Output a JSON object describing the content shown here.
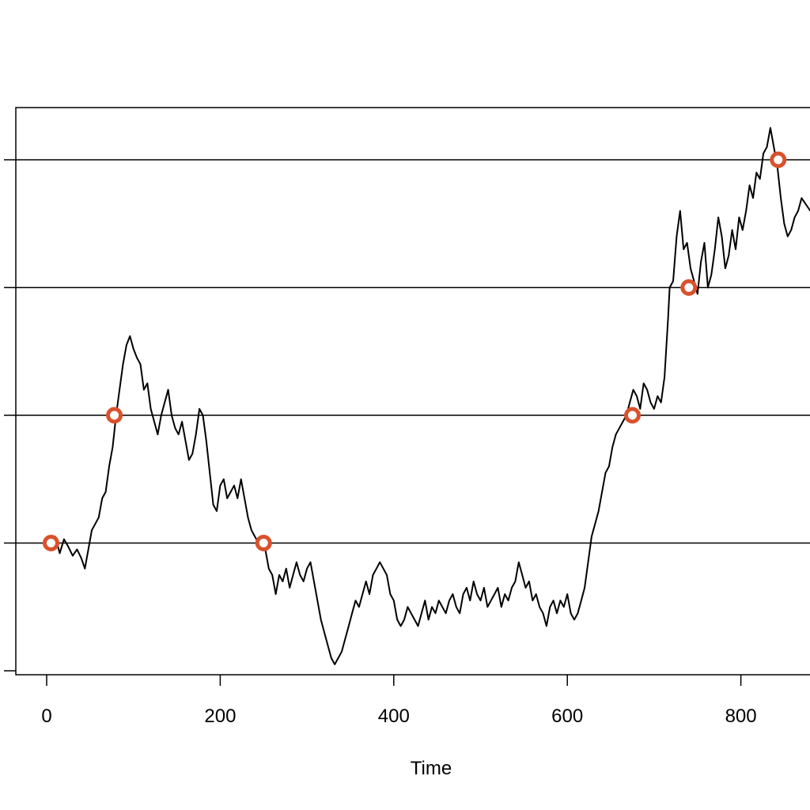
{
  "chart_data": {
    "type": "line",
    "title": "",
    "xlabel": "Time",
    "ylabel": "",
    "xlim": [
      -35,
      880
    ],
    "ylim": [
      -0.15,
      4.3
    ],
    "x_ticks": [
      {
        "value": 0,
        "label": "0"
      },
      {
        "value": 200,
        "label": "200"
      },
      {
        "value": 400,
        "label": "400"
      },
      {
        "value": 600,
        "label": "600"
      },
      {
        "value": 800,
        "label": "800"
      }
    ],
    "y_ticks": [
      0,
      1,
      2,
      3,
      4
    ],
    "grid": "horizontal lines at levels 1-4",
    "reference_levels": [
      1,
      2,
      3,
      4
    ],
    "series": [
      {
        "color": "#000000",
        "points": [
          [
            0,
            1.0
          ],
          [
            5,
            0.95
          ],
          [
            10,
            1.05
          ],
          [
            15,
            0.92
          ],
          [
            20,
            1.03
          ],
          [
            25,
            0.97
          ],
          [
            30,
            0.9
          ],
          [
            35,
            0.95
          ],
          [
            40,
            0.88
          ],
          [
            44,
            0.8
          ],
          [
            48,
            0.95
          ],
          [
            52,
            1.1
          ],
          [
            56,
            1.15
          ],
          [
            60,
            1.2
          ],
          [
            64,
            1.35
          ],
          [
            68,
            1.4
          ],
          [
            72,
            1.6
          ],
          [
            76,
            1.75
          ],
          [
            80,
            2.0
          ],
          [
            84,
            2.2
          ],
          [
            88,
            2.4
          ],
          [
            92,
            2.55
          ],
          [
            96,
            2.62
          ],
          [
            100,
            2.52
          ],
          [
            104,
            2.45
          ],
          [
            108,
            2.4
          ],
          [
            112,
            2.2
          ],
          [
            116,
            2.25
          ],
          [
            120,
            2.05
          ],
          [
            124,
            1.95
          ],
          [
            128,
            1.85
          ],
          [
            132,
            2.0
          ],
          [
            136,
            2.1
          ],
          [
            140,
            2.2
          ],
          [
            144,
            2.0
          ],
          [
            148,
            1.9
          ],
          [
            152,
            1.85
          ],
          [
            156,
            1.95
          ],
          [
            160,
            1.8
          ],
          [
            164,
            1.65
          ],
          [
            168,
            1.7
          ],
          [
            172,
            1.85
          ],
          [
            176,
            2.05
          ],
          [
            180,
            2.0
          ],
          [
            184,
            1.8
          ],
          [
            188,
            1.55
          ],
          [
            192,
            1.3
          ],
          [
            196,
            1.25
          ],
          [
            200,
            1.45
          ],
          [
            204,
            1.5
          ],
          [
            208,
            1.35
          ],
          [
            212,
            1.4
          ],
          [
            216,
            1.45
          ],
          [
            220,
            1.35
          ],
          [
            224,
            1.5
          ],
          [
            228,
            1.35
          ],
          [
            232,
            1.2
          ],
          [
            236,
            1.1
          ],
          [
            240,
            1.05
          ],
          [
            244,
            1.0
          ],
          [
            248,
            1.02
          ],
          [
            252,
            0.95
          ],
          [
            256,
            0.8
          ],
          [
            260,
            0.75
          ],
          [
            264,
            0.6
          ],
          [
            268,
            0.75
          ],
          [
            272,
            0.7
          ],
          [
            276,
            0.8
          ],
          [
            280,
            0.65
          ],
          [
            284,
            0.75
          ],
          [
            288,
            0.85
          ],
          [
            292,
            0.75
          ],
          [
            296,
            0.7
          ],
          [
            300,
            0.8
          ],
          [
            304,
            0.85
          ],
          [
            308,
            0.7
          ],
          [
            312,
            0.55
          ],
          [
            316,
            0.4
          ],
          [
            320,
            0.3
          ],
          [
            324,
            0.2
          ],
          [
            328,
            0.1
          ],
          [
            332,
            0.05
          ],
          [
            336,
            0.1
          ],
          [
            340,
            0.15
          ],
          [
            344,
            0.25
          ],
          [
            348,
            0.35
          ],
          [
            352,
            0.45
          ],
          [
            356,
            0.55
          ],
          [
            360,
            0.5
          ],
          [
            364,
            0.6
          ],
          [
            368,
            0.7
          ],
          [
            372,
            0.6
          ],
          [
            376,
            0.75
          ],
          [
            380,
            0.8
          ],
          [
            384,
            0.85
          ],
          [
            388,
            0.8
          ],
          [
            392,
            0.75
          ],
          [
            396,
            0.6
          ],
          [
            400,
            0.55
          ],
          [
            404,
            0.4
          ],
          [
            408,
            0.35
          ],
          [
            412,
            0.4
          ],
          [
            416,
            0.5
          ],
          [
            420,
            0.45
          ],
          [
            424,
            0.4
          ],
          [
            428,
            0.35
          ],
          [
            432,
            0.45
          ],
          [
            436,
            0.55
          ],
          [
            440,
            0.4
          ],
          [
            444,
            0.5
          ],
          [
            448,
            0.45
          ],
          [
            452,
            0.55
          ],
          [
            456,
            0.5
          ],
          [
            460,
            0.45
          ],
          [
            464,
            0.55
          ],
          [
            468,
            0.6
          ],
          [
            472,
            0.5
          ],
          [
            476,
            0.45
          ],
          [
            480,
            0.6
          ],
          [
            484,
            0.65
          ],
          [
            488,
            0.55
          ],
          [
            492,
            0.7
          ],
          [
            496,
            0.6
          ],
          [
            500,
            0.55
          ],
          [
            504,
            0.65
          ],
          [
            508,
            0.5
          ],
          [
            512,
            0.55
          ],
          [
            516,
            0.6
          ],
          [
            520,
            0.65
          ],
          [
            524,
            0.5
          ],
          [
            528,
            0.6
          ],
          [
            532,
            0.55
          ],
          [
            536,
            0.65
          ],
          [
            540,
            0.7
          ],
          [
            544,
            0.85
          ],
          [
            548,
            0.75
          ],
          [
            552,
            0.65
          ],
          [
            556,
            0.7
          ],
          [
            560,
            0.55
          ],
          [
            564,
            0.6
          ],
          [
            568,
            0.5
          ],
          [
            572,
            0.45
          ],
          [
            576,
            0.35
          ],
          [
            580,
            0.5
          ],
          [
            584,
            0.55
          ],
          [
            588,
            0.45
          ],
          [
            592,
            0.55
          ],
          [
            596,
            0.5
          ],
          [
            600,
            0.6
          ],
          [
            604,
            0.45
          ],
          [
            608,
            0.4
          ],
          [
            612,
            0.45
          ],
          [
            616,
            0.55
          ],
          [
            620,
            0.65
          ],
          [
            624,
            0.85
          ],
          [
            628,
            1.05
          ],
          [
            632,
            1.15
          ],
          [
            636,
            1.25
          ],
          [
            640,
            1.4
          ],
          [
            644,
            1.55
          ],
          [
            648,
            1.6
          ],
          [
            652,
            1.75
          ],
          [
            656,
            1.85
          ],
          [
            660,
            1.9
          ],
          [
            664,
            1.95
          ],
          [
            668,
            2.0
          ],
          [
            672,
            2.1
          ],
          [
            676,
            2.2
          ],
          [
            680,
            2.15
          ],
          [
            684,
            2.05
          ],
          [
            688,
            2.25
          ],
          [
            692,
            2.2
          ],
          [
            696,
            2.1
          ],
          [
            700,
            2.05
          ],
          [
            704,
            2.15
          ],
          [
            708,
            2.1
          ],
          [
            712,
            2.3
          ],
          [
            716,
            2.75
          ],
          [
            718,
            3.0
          ],
          [
            722,
            3.05
          ],
          [
            726,
            3.4
          ],
          [
            730,
            3.6
          ],
          [
            734,
            3.3
          ],
          [
            738,
            3.35
          ],
          [
            742,
            3.15
          ],
          [
            746,
            3.05
          ],
          [
            750,
            2.95
          ],
          [
            754,
            3.2
          ],
          [
            758,
            3.35
          ],
          [
            762,
            3.0
          ],
          [
            766,
            3.1
          ],
          [
            770,
            3.3
          ],
          [
            774,
            3.55
          ],
          [
            778,
            3.4
          ],
          [
            782,
            3.15
          ],
          [
            786,
            3.25
          ],
          [
            790,
            3.45
          ],
          [
            794,
            3.3
          ],
          [
            798,
            3.55
          ],
          [
            802,
            3.45
          ],
          [
            806,
            3.6
          ],
          [
            810,
            3.8
          ],
          [
            814,
            3.7
          ],
          [
            818,
            3.9
          ],
          [
            822,
            3.85
          ],
          [
            826,
            4.05
          ],
          [
            830,
            4.1
          ],
          [
            834,
            4.25
          ],
          [
            838,
            4.1
          ],
          [
            842,
            3.95
          ],
          [
            846,
            3.7
          ],
          [
            850,
            3.5
          ],
          [
            854,
            3.4
          ],
          [
            858,
            3.45
          ],
          [
            862,
            3.55
          ],
          [
            866,
            3.6
          ],
          [
            870,
            3.7
          ],
          [
            875,
            3.65
          ],
          [
            880,
            3.6
          ]
        ]
      }
    ],
    "highlighted_points": [
      {
        "x": 5,
        "y": 1
      },
      {
        "x": 78,
        "y": 2
      },
      {
        "x": 250,
        "y": 1
      },
      {
        "x": 675,
        "y": 2
      },
      {
        "x": 740,
        "y": 3
      },
      {
        "x": 843,
        "y": 4
      }
    ],
    "marker_color": "#d9512c"
  }
}
